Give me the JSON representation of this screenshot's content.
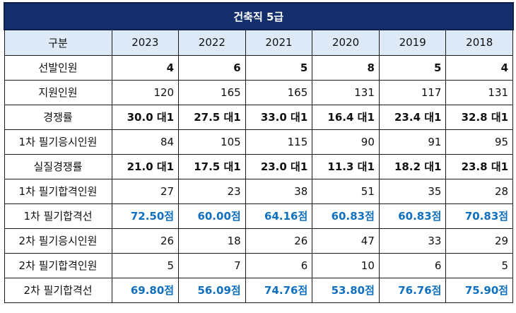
{
  "table": {
    "title": "건축직 5급",
    "header": [
      "구분",
      "2023",
      "2022",
      "2021",
      "2020",
      "2019",
      "2018"
    ],
    "rows": [
      {
        "label": "선발인원",
        "style": "bold",
        "values": [
          "4",
          "6",
          "5",
          "8",
          "5",
          "4"
        ]
      },
      {
        "label": "지원인원",
        "style": "normal",
        "values": [
          "120",
          "165",
          "165",
          "131",
          "117",
          "131"
        ]
      },
      {
        "label": "경쟁률",
        "style": "bold",
        "values": [
          "30.0 대1",
          "27.5 대1",
          "33.0 대1",
          "16.4 대1",
          "23.4 대1",
          "32.8 대1"
        ]
      },
      {
        "label": "1차 필기응시인원",
        "style": "normal",
        "values": [
          "84",
          "105",
          "115",
          "90",
          "91",
          "95"
        ]
      },
      {
        "label": "실질경쟁률",
        "style": "bold",
        "values": [
          "21.0 대1",
          "17.5 대1",
          "23.0 대1",
          "11.3 대1",
          "18.2 대1",
          "23.8 대1"
        ]
      },
      {
        "label": "1차 필기합격인원",
        "style": "normal",
        "values": [
          "27",
          "23",
          "38",
          "51",
          "35",
          "28"
        ]
      },
      {
        "label": "1차 필기합격선",
        "style": "blue",
        "values": [
          "72.50점",
          "60.00점",
          "64.16점",
          "60.83점",
          "60.83점",
          "70.83점"
        ]
      },
      {
        "label": "2차 필기응시인원",
        "style": "normal",
        "values": [
          "26",
          "18",
          "26",
          "47",
          "33",
          "29"
        ]
      },
      {
        "label": "2차 필기합격인원",
        "style": "normal",
        "values": [
          "5",
          "7",
          "6",
          "10",
          "6",
          "5"
        ]
      },
      {
        "label": "2차 필기합격선",
        "style": "blue",
        "values": [
          "69.80점",
          "56.09점",
          "74.76점",
          "53.80점",
          "76.76점",
          "75.90점"
        ]
      }
    ]
  },
  "colors": {
    "title_bg": "#142f6b",
    "header_bg": "#dde9f7",
    "score_text": "#0f6fc0"
  }
}
